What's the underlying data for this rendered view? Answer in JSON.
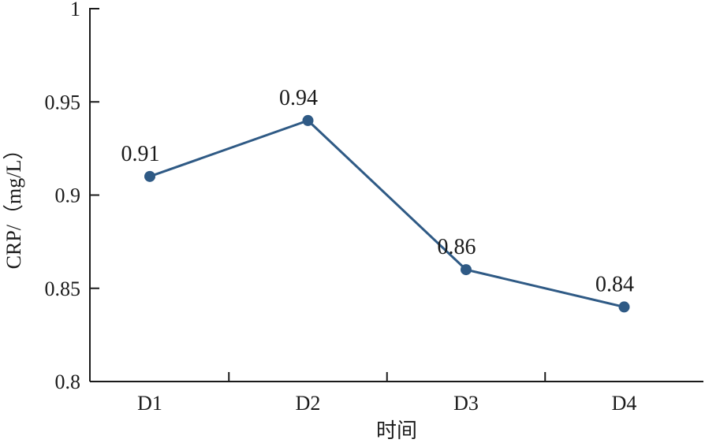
{
  "chart_data": {
    "type": "line",
    "title": "",
    "xlabel": "时间",
    "ylabel": "CRP/（mg/L）",
    "categories": [
      "D1",
      "D2",
      "D3",
      "D4"
    ],
    "series": [
      {
        "values": [
          0.91,
          0.94,
          0.86,
          0.84
        ],
        "labels": [
          "0.91",
          "0.94",
          "0.86",
          "0.84"
        ]
      }
    ],
    "ylim": [
      0.8,
      1.0
    ],
    "yticks": [
      0.8,
      0.85,
      0.9,
      0.95,
      1.0
    ],
    "ytick_labels": [
      "0.8",
      "0.85",
      "0.9",
      "0.95",
      "1"
    ],
    "grid": false,
    "legend": "none",
    "colors": {
      "series": "#2f5a85",
      "axis": "#1a1a1a"
    }
  }
}
